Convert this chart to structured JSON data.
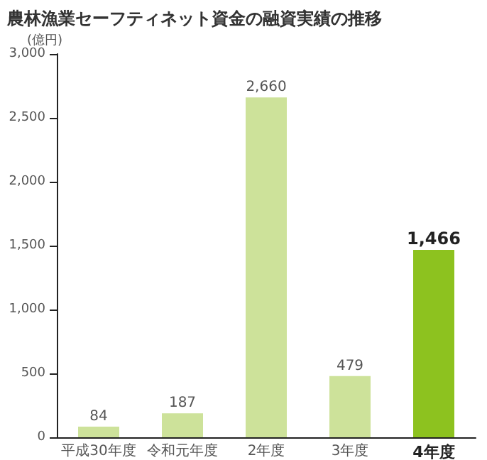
{
  "chart_data": {
    "type": "bar",
    "title": "農林漁業セーフティネット資金の融資実績の推移",
    "ylabel": "(億円)",
    "categories": [
      "平成30年度",
      "令和元年度",
      "2年度",
      "3年度",
      "4年度"
    ],
    "values": [
      84,
      187,
      2660,
      479,
      1466
    ],
    "value_labels": [
      "84",
      "187",
      "2,660",
      "479",
      "1,466"
    ],
    "colors": [
      "#cde29a",
      "#cde29a",
      "#cde29a",
      "#cde29a",
      "#8dc21f"
    ],
    "ylim": [
      0,
      3000
    ],
    "yticks": [
      0,
      500,
      {
        "value": 1000,
        "label": "1,000"
      },
      {
        "value": 1500,
        "label": "1,500"
      },
      {
        "value": 2000,
        "label": "2,000"
      },
      {
        "value": 2500,
        "label": "2,500"
      },
      {
        "value": 3000,
        "label": "3,000"
      }
    ]
  }
}
